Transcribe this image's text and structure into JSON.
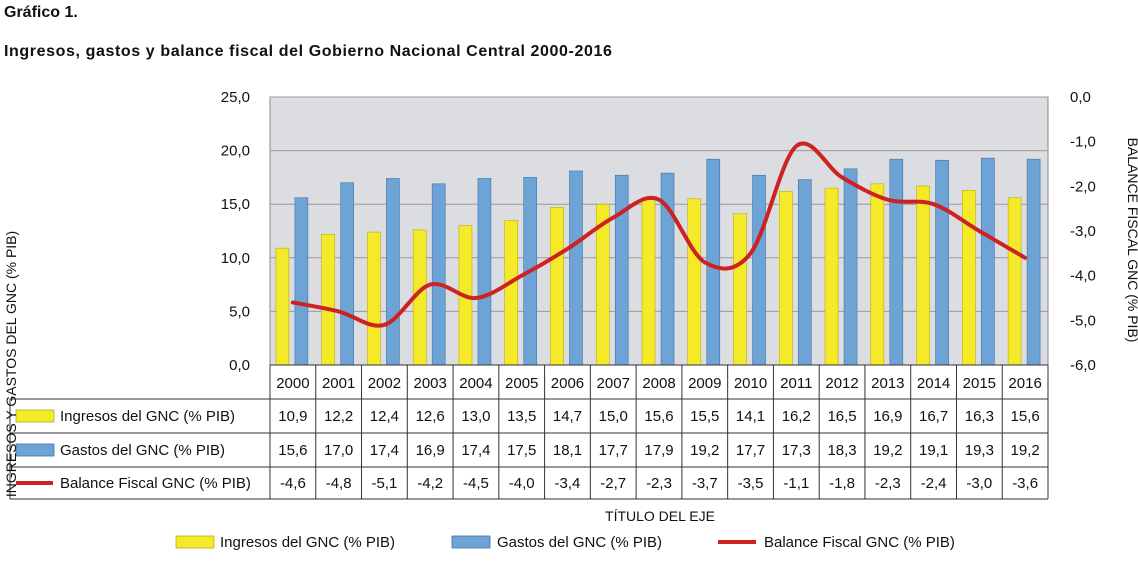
{
  "header": {
    "label": "Gráfico 1.",
    "title": "Ingresos, gastos y balance fiscal del Gobierno Nacional Central 2000-2016"
  },
  "colors": {
    "ingresos": "#f5ea2a",
    "gastos": "#6ea3d6",
    "balance": "#cc2222",
    "plot_bg": "#dcdde0"
  },
  "chart_data": {
    "type": "bar",
    "title": "Ingresos, gastos y balance fiscal del Gobierno Nacional Central 2000-2016",
    "xlabel": "TÍTULO DEL EJE",
    "ylabel": "INGRESOS Y GASTOS DEL GNC (% PIB)",
    "y2label": "BALANCE FISCAL GNC (% PIB)",
    "ylim": [
      0,
      25
    ],
    "y2lim": [
      -6,
      0
    ],
    "yticks": [
      "0,0",
      "5,0",
      "10,0",
      "15,0",
      "20,0",
      "25,0"
    ],
    "y2ticks": [
      "-6,0",
      "-5,0",
      "-4,0",
      "-3,0",
      "-2,0",
      "-1,0",
      "0,0"
    ],
    "grid": true,
    "legend_position": "bottom",
    "categories": [
      "2000",
      "2001",
      "2002",
      "2003",
      "2004",
      "2005",
      "2006",
      "2007",
      "2008",
      "2009",
      "2010",
      "2011",
      "2012",
      "2013",
      "2014",
      "2015",
      "2016"
    ],
    "series": [
      {
        "name": "Ingresos del GNC (% PIB)",
        "kind": "bar",
        "axis": "left",
        "values": [
          10.9,
          12.2,
          12.4,
          12.6,
          13.0,
          13.5,
          14.7,
          15.0,
          15.6,
          15.5,
          14.1,
          16.2,
          16.5,
          16.9,
          16.7,
          16.3,
          15.6
        ],
        "labels": [
          "10,9",
          "12,2",
          "12,4",
          "12,6",
          "13,0",
          "13,5",
          "14,7",
          "15,0",
          "15,6",
          "15,5",
          "14,1",
          "16,2",
          "16,5",
          "16,9",
          "16,7",
          "16,3",
          "15,6"
        ]
      },
      {
        "name": "Gastos del GNC (% PIB)",
        "kind": "bar",
        "axis": "left",
        "values": [
          15.6,
          17.0,
          17.4,
          16.9,
          17.4,
          17.5,
          18.1,
          17.7,
          17.9,
          19.2,
          17.7,
          17.3,
          18.3,
          19.2,
          19.1,
          19.3,
          19.2
        ],
        "labels": [
          "15,6",
          "17,0",
          "17,4",
          "16,9",
          "17,4",
          "17,5",
          "18,1",
          "17,7",
          "17,9",
          "19,2",
          "17,7",
          "17,3",
          "18,3",
          "19,2",
          "19,1",
          "19,3",
          "19,2"
        ]
      },
      {
        "name": "Balance Fiscal GNC (% PIB)",
        "kind": "line",
        "axis": "right",
        "values": [
          -4.6,
          -4.8,
          -5.1,
          -4.2,
          -4.5,
          -4.0,
          -3.4,
          -2.7,
          -2.3,
          -3.7,
          -3.5,
          -1.1,
          -1.8,
          -2.3,
          -2.4,
          -3.0,
          -3.6
        ],
        "labels": [
          "-4,6",
          "-4,8",
          "-5,1",
          "-4,2",
          "-4,5",
          "-4,0",
          "-3,4",
          "-2,7",
          "-2,3",
          "-3,7",
          "-3,5",
          "-1,1",
          "-1,8",
          "-2,3",
          "-2,4",
          "-3,0",
          "-3,6"
        ]
      }
    ]
  }
}
